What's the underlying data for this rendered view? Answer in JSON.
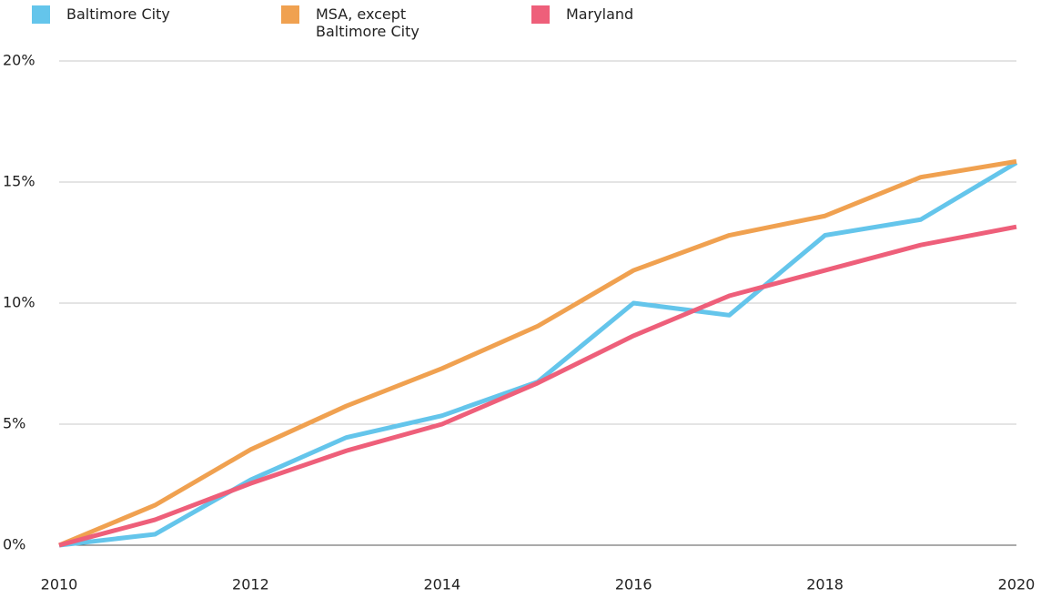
{
  "chart_data": {
    "type": "line",
    "x": [
      2010,
      2011,
      2012,
      2013,
      2014,
      2015,
      2016,
      2017,
      2018,
      2019,
      2020
    ],
    "series": [
      {
        "name": "Baltimore City",
        "color": "#64c5eb",
        "values": [
          0,
          0.45,
          2.7,
          4.45,
          5.35,
          6.75,
          10.0,
          9.5,
          12.8,
          13.45,
          15.8
        ]
      },
      {
        "name": "MSA, except Baltimore City",
        "color": "#f0a150",
        "values": [
          0,
          1.65,
          3.95,
          5.75,
          7.3,
          9.05,
          11.35,
          12.8,
          13.6,
          15.2,
          15.85
        ]
      },
      {
        "name": "Maryland",
        "color": "#ee5f7a",
        "values": [
          0,
          1.05,
          2.55,
          3.9,
          5.0,
          6.7,
          8.65,
          10.3,
          11.35,
          12.4,
          13.15
        ]
      }
    ],
    "xlim": [
      2010,
      2020
    ],
    "xticks": [
      2010,
      2012,
      2014,
      2016,
      2018,
      2020
    ],
    "ylim": [
      0,
      20
    ],
    "yticks": [
      {
        "value": 0,
        "label": "0%"
      },
      {
        "value": 5,
        "label": "5%"
      },
      {
        "value": 10,
        "label": "10%"
      },
      {
        "value": 15,
        "label": "15%"
      },
      {
        "value": 20,
        "label": "20%"
      }
    ],
    "grid": true
  }
}
